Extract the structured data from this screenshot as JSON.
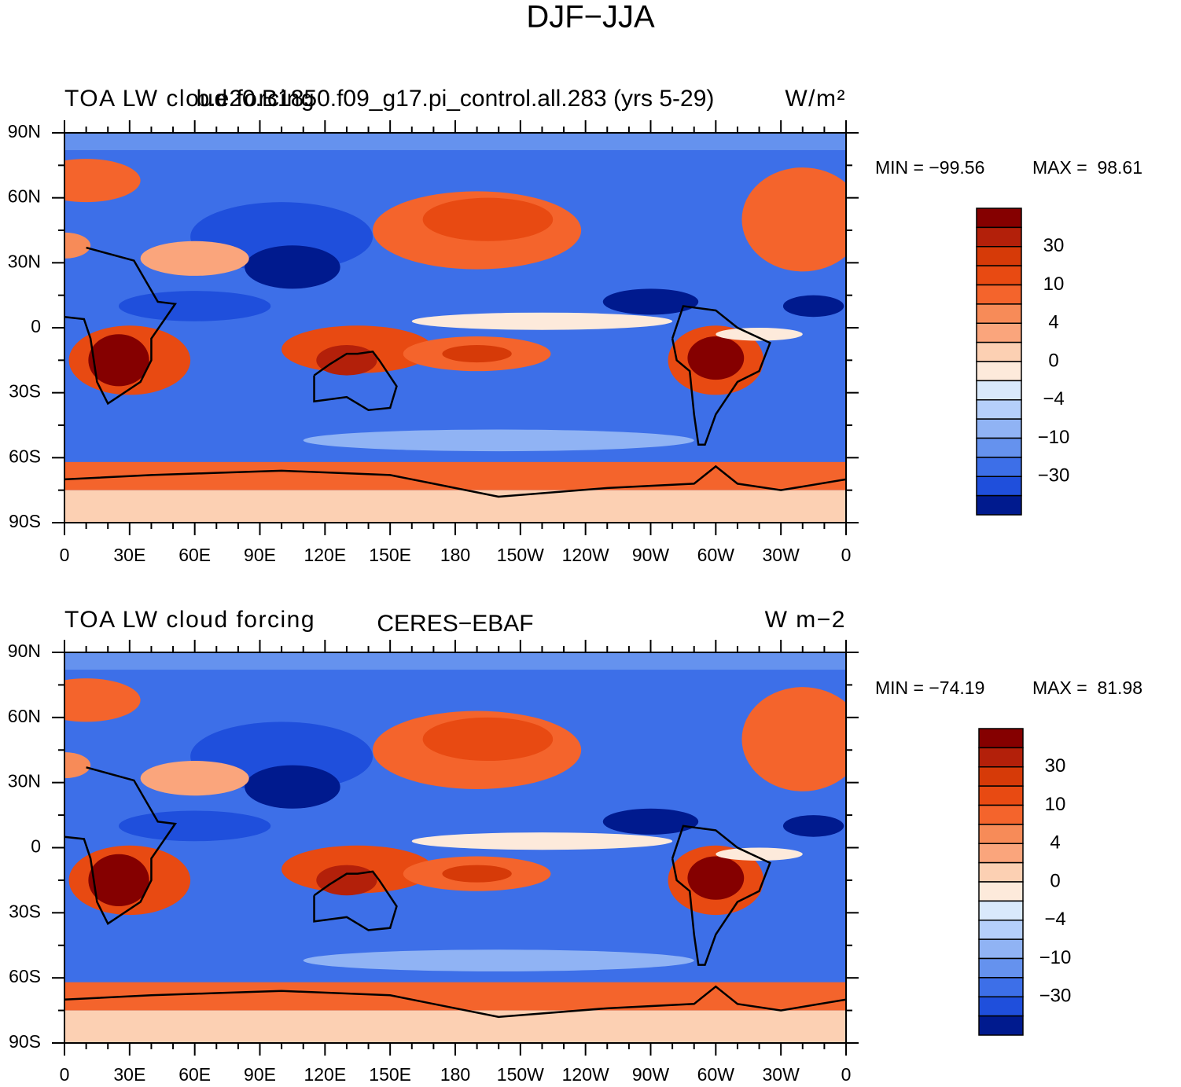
{
  "title": "DJF−JJA",
  "panels": [
    {
      "left_title": "TOA LW cloud forcing",
      "center_title": "b.e20.B1850.f09_g17.pi_control.all.283 (yrs 5-29)",
      "right_title": "W/m²",
      "min_label": "MIN = −99.56",
      "max_label": "MAX =  98.61",
      "lat_labels": [
        "90N",
        "60N",
        "30N",
        "0",
        "30S",
        "60S",
        "90S"
      ],
      "lon_labels": [
        "0",
        "30E",
        "60E",
        "90E",
        "120E",
        "150E",
        "180",
        "150W",
        "120W",
        "90W",
        "60W",
        "30W",
        "0"
      ],
      "colorbar": {
        "labels": [
          "30",
          "10",
          "4",
          "0",
          "−4",
          "−10",
          "−30"
        ],
        "colors": [
          "#850000",
          "#b3200a",
          "#d63a08",
          "#e84a12",
          "#f4642c",
          "#f78b58",
          "#faa57c",
          "#fcd0b3",
          "#fdeadb",
          "#d9e9fb",
          "#b5cffa",
          "#90b3f4",
          "#6592ee",
          "#3d6fe8",
          "#1f4fdc",
          "#001a8e"
        ]
      }
    },
    {
      "left_title": "TOA LW cloud forcing",
      "center_title": "CERES−EBAF",
      "right_title": "W m−2",
      "min_label": "MIN = −74.19",
      "max_label": "MAX =  81.98",
      "lat_labels": [
        "90N",
        "60N",
        "30N",
        "0",
        "30S",
        "60S",
        "90S"
      ],
      "lon_labels": [
        "0",
        "30E",
        "60E",
        "90E",
        "120E",
        "150E",
        "180",
        "150W",
        "120W",
        "90W",
        "60W",
        "30W",
        "0"
      ],
      "colorbar": {
        "labels": [
          "30",
          "10",
          "4",
          "0",
          "−4",
          "−10",
          "−30"
        ],
        "colors": [
          "#850000",
          "#b3200a",
          "#d63a08",
          "#e84a12",
          "#f4642c",
          "#f78b58",
          "#faa57c",
          "#fcd0b3",
          "#fdeadb",
          "#d9e9fb",
          "#b5cffa",
          "#90b3f4",
          "#6592ee",
          "#3d6fe8",
          "#1f4fdc",
          "#001a8e"
        ]
      }
    }
  ]
}
